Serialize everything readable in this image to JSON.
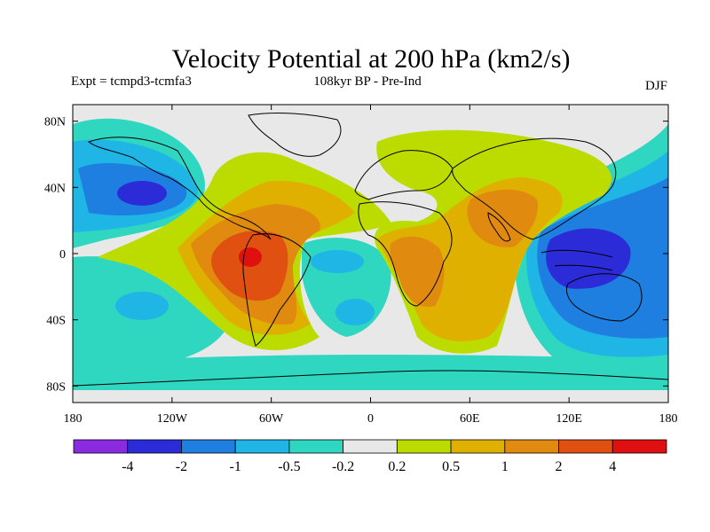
{
  "title": "Velocity Potential at 200 hPa (km2/s)",
  "subtitle_left": "Expt = tcmpd3-tcmfa3",
  "subtitle_center": "108kyr BP - Pre-Ind",
  "subtitle_right": "DJF",
  "map": {
    "lon_range": [
      -180,
      180
    ],
    "lat_range": [
      -90,
      90
    ],
    "x_ticks": [
      {
        "lon": -180,
        "label": "180"
      },
      {
        "lon": -120,
        "label": "120W"
      },
      {
        "lon": -60,
        "label": "60W"
      },
      {
        "lon": 0,
        "label": "0"
      },
      {
        "lon": 60,
        "label": "60E"
      },
      {
        "lon": 120,
        "label": "120E"
      },
      {
        "lon": 180,
        "label": "180"
      }
    ],
    "y_ticks": [
      {
        "lat": 80,
        "label": "80N"
      },
      {
        "lat": 40,
        "label": "40N"
      },
      {
        "lat": 0,
        "label": "0"
      },
      {
        "lat": -40,
        "label": "40S"
      },
      {
        "lat": -80,
        "label": "80S"
      }
    ],
    "background_color": "#e8e8e8"
  },
  "colorbar": {
    "colors": [
      "#8a2be2",
      "#2b2bd8",
      "#1f7fe0",
      "#1fb6e6",
      "#2fd6c0",
      "#e8e8e8",
      "#bcdc00",
      "#e0b000",
      "#e08a10",
      "#e05010",
      "#e01010"
    ],
    "labels": [
      "-4",
      "-2",
      "-1",
      "-0.5",
      "-0.2",
      "0.2",
      "0.5",
      "1",
      "2",
      "4"
    ]
  },
  "chart_data": {
    "type": "heatmap",
    "title": "Velocity Potential at 200 hPa (km2/s)",
    "variable": "velocity potential difference",
    "units": "km2/s",
    "levels": [
      -4,
      -2,
      -1,
      -0.5,
      -0.2,
      0.2,
      0.5,
      1,
      2,
      4
    ],
    "features": [
      {
        "name": "south-america-maximum",
        "lon": -70,
        "lat": -5,
        "value": 4
      },
      {
        "name": "west-pacific-minimum",
        "lon": 140,
        "lat": 5,
        "value": -2
      },
      {
        "name": "north-pacific-minimum",
        "lon": -140,
        "lat": 35,
        "value": -2
      },
      {
        "name": "south-atlantic-minimum",
        "lon": -20,
        "lat": -5,
        "value": -1
      },
      {
        "name": "asia-maximum",
        "lon": 80,
        "lat": 20,
        "value": 2
      },
      {
        "name": "africa-maximum",
        "lon": 30,
        "lat": -20,
        "value": 2
      }
    ]
  }
}
